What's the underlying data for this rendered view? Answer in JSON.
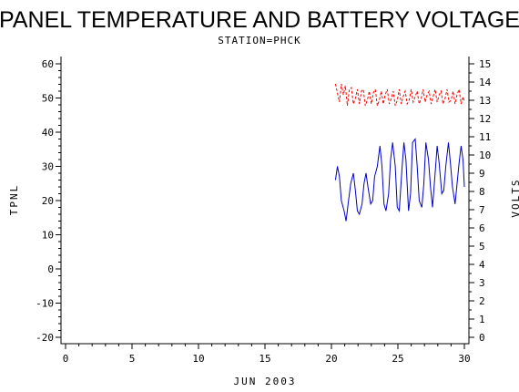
{
  "chart_data": {
    "type": "line",
    "title": "PANEL TEMPERATURE AND BATTERY VOLTAGE",
    "subtitle": "STATION=PHCK",
    "xlabel": "JUN 2003",
    "ylabel": "TPNL",
    "y2label": "VOLTS",
    "xlim": [
      0,
      30
    ],
    "xticks": [
      "0",
      "5",
      "10",
      "15",
      "20",
      "25",
      "30"
    ],
    "ylim": [
      -20,
      60
    ],
    "yticks": [
      "-20",
      "-10",
      "0",
      "10",
      "20",
      "30",
      "40",
      "50",
      "60"
    ],
    "y2lim": [
      0,
      15
    ],
    "y2ticks": [
      "0",
      "1",
      "2",
      "3",
      "4",
      "5",
      "6",
      "7",
      "8",
      "9",
      "10",
      "11",
      "12",
      "13",
      "14",
      "15"
    ],
    "grid": false,
    "series": [
      {
        "axis": "left",
        "color": "#0000cc",
        "style": "solid",
        "x": [
          20.3,
          20.45,
          20.6,
          20.75,
          20.95,
          21.1,
          21.25,
          21.45,
          21.65,
          21.8,
          21.95,
          22.1,
          22.3,
          22.45,
          22.6,
          22.75,
          22.95,
          23.1,
          23.25,
          23.45,
          23.65,
          23.8,
          23.95,
          24.1,
          24.3,
          24.45,
          24.6,
          24.8,
          24.95,
          25.1,
          25.3,
          25.45,
          25.6,
          25.8,
          25.95,
          26.1,
          26.3,
          26.45,
          26.6,
          26.8,
          26.95,
          27.1,
          27.3,
          27.45,
          27.6,
          27.8,
          27.95,
          28.1,
          28.3,
          28.45,
          28.6,
          28.8,
          28.95,
          29.1,
          29.3,
          29.45,
          29.6,
          29.75,
          29.9,
          30.0
        ],
        "y": [
          26,
          30,
          27,
          20,
          17,
          14,
          19,
          25,
          28,
          23,
          17,
          16,
          19,
          25,
          28,
          24,
          19,
          20,
          27,
          30,
          36,
          30,
          19,
          17,
          22,
          32,
          37,
          30,
          18,
          17,
          29,
          37,
          32,
          17,
          22,
          37,
          38,
          30,
          20,
          18,
          25,
          37,
          32,
          24,
          18,
          28,
          36,
          31,
          22,
          23,
          30,
          37,
          31,
          24,
          19,
          25,
          31,
          36,
          32,
          24
        ]
      },
      {
        "axis": "right",
        "color": "#ff0000",
        "style": "dashed",
        "x": [
          20.3,
          20.45,
          20.6,
          20.75,
          20.9,
          21.05,
          21.2,
          21.35,
          21.5,
          21.65,
          21.8,
          21.95,
          22.1,
          22.25,
          22.4,
          22.55,
          22.7,
          22.85,
          23.0,
          23.15,
          23.3,
          23.45,
          23.6,
          23.75,
          23.9,
          24.05,
          24.2,
          24.35,
          24.5,
          24.65,
          24.8,
          24.95,
          25.1,
          25.25,
          25.4,
          25.55,
          25.7,
          25.85,
          26.0,
          26.15,
          26.3,
          26.45,
          26.6,
          26.75,
          26.9,
          27.05,
          27.2,
          27.35,
          27.5,
          27.65,
          27.8,
          27.95,
          28.1,
          28.25,
          28.4,
          28.55,
          28.7,
          28.85,
          29.0,
          29.15,
          29.3,
          29.45,
          29.6,
          29.75,
          29.9,
          30.0
        ],
        "y": [
          13.9,
          13.4,
          12.9,
          13.9,
          13.3,
          13.8,
          12.7,
          13.6,
          13.7,
          12.8,
          13.1,
          13.6,
          12.8,
          13.5,
          13.6,
          12.7,
          13.0,
          13.5,
          12.8,
          13.4,
          13.6,
          12.7,
          13.0,
          13.5,
          12.8,
          13.3,
          13.6,
          12.8,
          13.1,
          13.5,
          12.7,
          13.0,
          13.6,
          12.8,
          13.2,
          13.5,
          12.8,
          13.0,
          13.6,
          12.9,
          13.2,
          13.5,
          12.8,
          13.1,
          13.6,
          12.9,
          13.3,
          13.5,
          12.8,
          13.2,
          13.6,
          12.9,
          13.3,
          13.5,
          12.8,
          13.1,
          13.6,
          12.9,
          13.0,
          13.5,
          12.8,
          13.3,
          13.6,
          12.8,
          13.2,
          12.9
        ]
      }
    ]
  }
}
